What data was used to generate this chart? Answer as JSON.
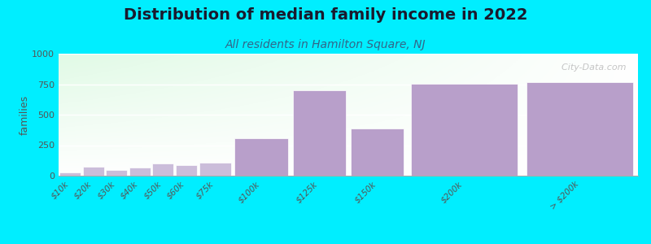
{
  "title": "Distribution of median family income in 2022",
  "subtitle": "All residents in Hamilton Square, NJ",
  "categories": [
    "$10k",
    "$20k",
    "$30k",
    "$40k",
    "$50k",
    "$60k",
    "$75k",
    "$100k",
    "$125k",
    "$150k",
    "$200k",
    "> $200k"
  ],
  "values": [
    25,
    75,
    45,
    70,
    100,
    90,
    110,
    310,
    700,
    390,
    755,
    770
  ],
  "bar_widths": [
    1,
    1,
    1,
    1,
    1,
    1,
    1.5,
    2.5,
    2.5,
    2.5,
    5,
    5
  ],
  "bar_lefts": [
    0,
    1,
    2,
    3,
    4,
    5,
    6,
    7.5,
    10,
    12.5,
    15,
    20
  ],
  "bar_color_low": "#cbbdda",
  "bar_color_high": "#b89fca",
  "background_color": "#00eeff",
  "plot_bg_colors": [
    "#e8f5e0",
    "#f8fff4",
    "#ffffff"
  ],
  "ylabel": "families",
  "ylim": [
    0,
    1000
  ],
  "yticks": [
    0,
    250,
    500,
    750,
    1000
  ],
  "title_fontsize": 14,
  "subtitle_fontsize": 10,
  "watermark": "  City-Data.com"
}
